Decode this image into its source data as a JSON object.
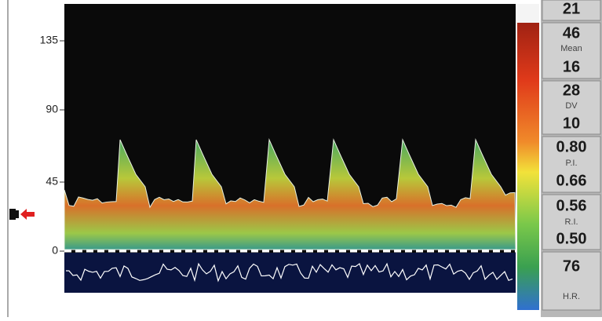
{
  "scale": {
    "labels": [
      "135",
      "90",
      "45",
      "0"
    ]
  },
  "readouts": {
    "top": "21",
    "mean": {
      "upper": "46",
      "label": "Mean",
      "lower": "16"
    },
    "dv": {
      "upper": "28",
      "label": "DV",
      "lower": "10"
    },
    "pi": {
      "upper": "0.80",
      "label": "P.I.",
      "lower": "0.66"
    },
    "ri": {
      "upper": "0.56",
      "label": "R.I.",
      "lower": "0.50"
    },
    "hr": {
      "value": "76",
      "label": "H.R."
    }
  }
}
